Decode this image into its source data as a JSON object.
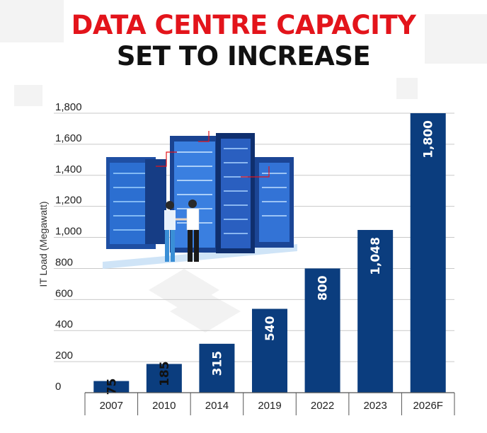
{
  "title": {
    "line1": "DATA CENTRE CAPACITY",
    "line2": "SET TO INCREASE"
  },
  "colors": {
    "title_accent": "#e3141b",
    "title_dark": "#111111",
    "bar": "#0b3d7e",
    "grid": "#c9c9c9"
  },
  "illustration": {
    "icon": "server-racks-with-people-icon"
  },
  "chart_data": {
    "type": "bar",
    "title": "DATA CENTRE CAPACITY SET TO INCREASE",
    "ylabel": "IT Load (Megawatt)",
    "xlabel": "",
    "categories": [
      "2007",
      "2010",
      "2014",
      "2019",
      "2022",
      "2023",
      "2026F"
    ],
    "values": [
      75,
      185,
      315,
      540,
      800,
      1048,
      1800
    ],
    "value_labels": [
      "75",
      "185",
      "315",
      "540",
      "800",
      "1,048",
      "1,800"
    ],
    "ylim": [
      0,
      1800
    ],
    "yticks": [
      0,
      200,
      400,
      600,
      800,
      1000,
      1200,
      1400,
      1600,
      1800
    ],
    "ytick_labels": [
      "0",
      "200",
      "400",
      "600",
      "800",
      "1,000",
      "1,200",
      "1,400",
      "1,600",
      "1,800"
    ],
    "grid": true,
    "legend": "none"
  }
}
